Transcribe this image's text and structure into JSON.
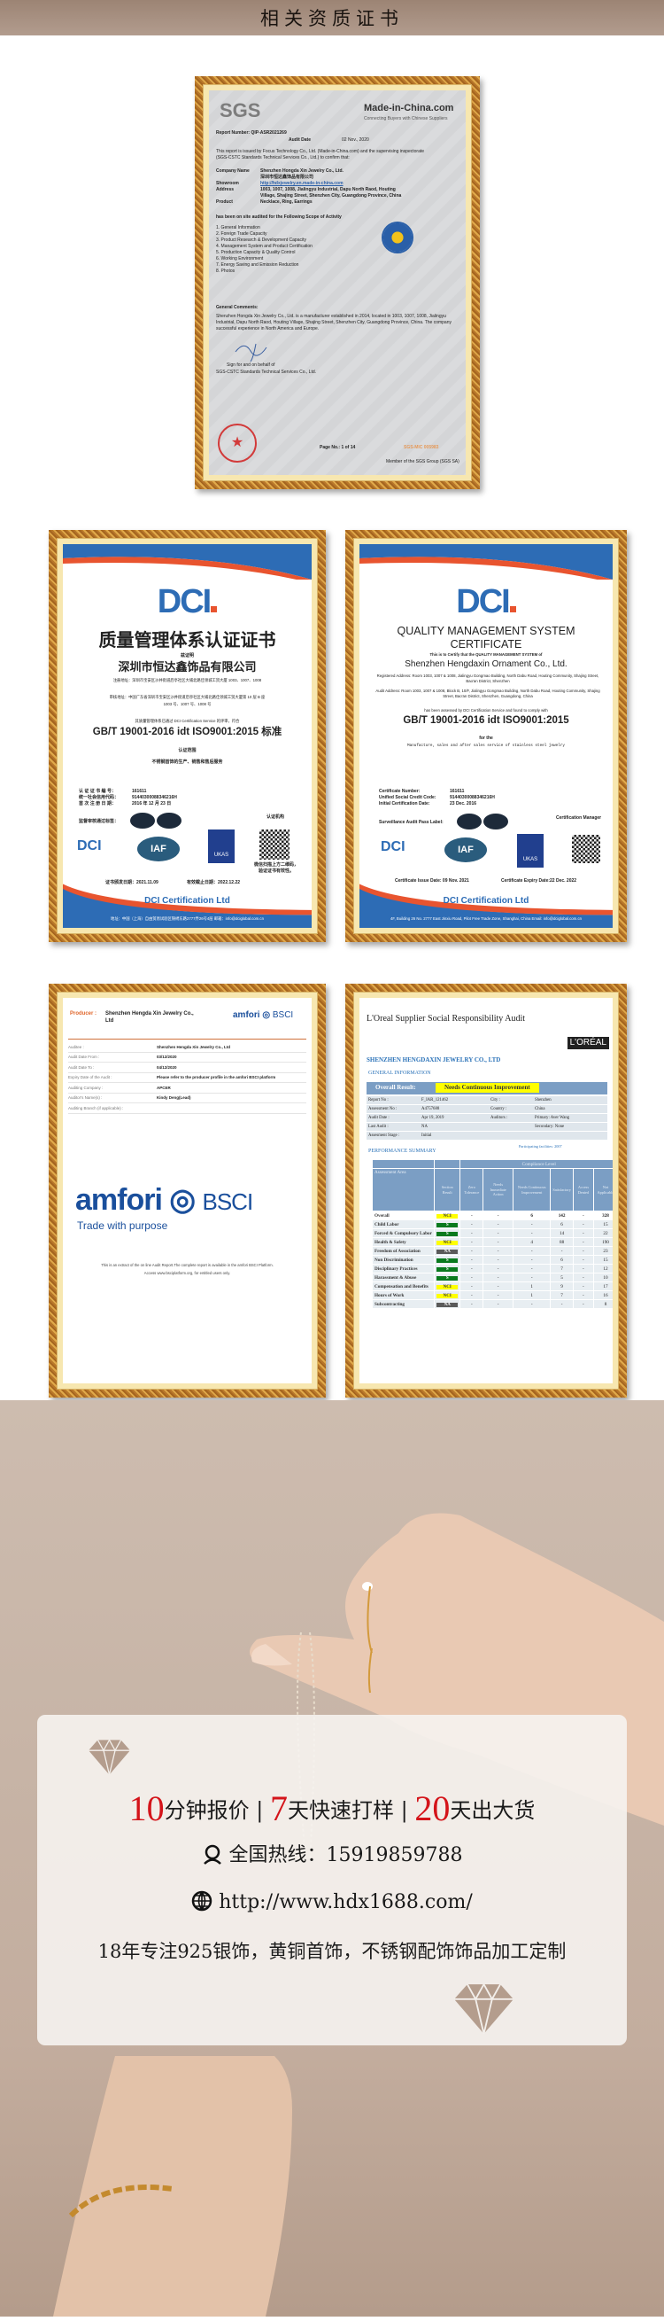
{
  "header": {
    "title": "相关资质证书"
  },
  "sgs": {
    "brand": "SGS",
    "mic_logo": "Made-in-China.com",
    "mic_tagline": "Connecting Buyers with Chinese Suppliers",
    "report_number": "Report Number: QIP-ASR2021269",
    "audit_date_label": "Audit Date",
    "audit_date": "02 Nov., 2020",
    "intro": "This report is issued by Focus Technology Co., Ltd. (Made-in-China.com) and the supervising inspectorate (SGS-CSTC Standards Technical Services Co., Ltd.) to confirm that:",
    "fields": [
      {
        "label": "Company Name",
        "value": "Shenzhen Hongda Xin Jewelry Co., Ltd."
      },
      {
        "label": "",
        "value": "深圳市恒达鑫饰品有限公司"
      },
      {
        "label": "Showroom",
        "value": "http://hdxjewelry.en.made-in-china.com"
      },
      {
        "label": "Address",
        "value": "1003, 1007, 1008, Jialingyu Industrial, Dapu North Raod, Houting"
      },
      {
        "label": "",
        "value": "Village, Shajing Street, Shenzhen City, Guangdong Province, China"
      },
      {
        "label": "Product",
        "value": "Necklace, Ring, Earrings"
      }
    ],
    "scope_title": "has been on site audited for the Following Scope of Activity",
    "scope": [
      "1. General Information",
      "2. Foreign Trade Capacity",
      "3. Product Research & Development Capacity",
      "4. Management System and Product Certification",
      "5. Production Capacity & Quality Control",
      "6. Working Environment",
      "7. Energy Saving and Emission Reduction",
      "8. Photos"
    ],
    "comments_title": "General Comments:",
    "comments": "Shenzhen Hongda Xin Jewelry Co., Ltd. is a manufacturer established in 2014, located in 1003, 1007, 1008, Jialingyu Industrial, Dapu North Raod, Houting Village, Shajing Street, Shenzhen City, Guangdong Province, China. The company successful experience in North America and Europe.",
    "sign1": "Sign for and on behalf of",
    "sign2": "SGS-CSTC Standards Technical Services Co., Ltd.",
    "page": "Page No.: 1 of 14",
    "serial": "SGS-MIC  005983",
    "member": "Member of the SGS Group (SGS SA)"
  },
  "dci_cn": {
    "title": "质量管理体系认证证书",
    "sub": "兹证明",
    "company": "深圳市恒达鑫饰品有限公司",
    "reg_addr": "注册地址：深圳市宝安区沙井街道后亭社区大埔北路佳领城工贸大厦 1003、1007、1008",
    "audit_addr1": "审核地址：中国广东省深圳市宝安区沙井街道后亭社区大埔北路佳领城工贸大厦第 10 层 B 座",
    "audit_addr2": "1003 号、1007 号、1008 号",
    "assessed": "其质量管理体系已通过 DCI Certification Service 的评审，符合",
    "standard": "GB/T 19001-2016 idt ISO9001:2015 标准",
    "scope_label": "认证范围",
    "scope": "不锈钢首饰的生产、销售和售后服务",
    "rows": [
      {
        "label": "认 证 证 书 编 号：",
        "value": "161611"
      },
      {
        "label": "统一社会信用代码：",
        "value": "91440300088346216H"
      },
      {
        "label": "首 次 注 册 日 期：",
        "value": "2016 年 12 月 23 日"
      }
    ],
    "label_pass": "监督审核通过标签：",
    "seal_label": "认证机构",
    "qr_note": "微信扫描上方二维码，验证证书有效性。",
    "issue": "证书颁发日期：2021.11.09",
    "expiry": "有效截止日期：2022.12.22",
    "footer": "DCI Certification Ltd",
    "footer_addr": "地址：中国（上海）自由贸易试验区锦绣东路2777弄26号4层    邮箱：info@dciglobal.com.cn"
  },
  "dci_en": {
    "title1": "QUALITY MANAGEMENT SYSTEM",
    "title2": "CERTIFICATE",
    "certify": "This is to Certify that the QUALITY MANAGEMENT SYSTEM of",
    "company": "Shenzhen Hengdaxin Ornament Co., Ltd.",
    "reg_addr": "Registered Address: Room 1003, 1007 & 1008, Jialingyu Gongmao Building, North Dabu Road, Houting Community, Shajing Street, Bao'an District, Shenzhen",
    "audit_addr": "Audit Address: Room 1003, 1007 & 1008, Block B, 10/F, Jialingyu Gongmao Building, North Dabu Road, Houting Community, Shajing Street, Bao'an District, Shenzhen, Guangdong, China",
    "assessed": "has been assessed by DCI Certification Service and found to comply with",
    "standard": "GB/T 19001-2016 idt ISO9001:2015",
    "for": "for the",
    "scope": "Manufacture, sales and after sales service of stainless steel jewelry",
    "rows": [
      {
        "label": "Certificate Number:",
        "value": "161611"
      },
      {
        "label": "Unified Social Credit Code:",
        "value": "91440300088346216H"
      },
      {
        "label": "Initial Certification Date:",
        "value": "23 Dec. 2016"
      }
    ],
    "label_pass": "Surveillance Audit Pass Label:",
    "manager": "Certification Manager",
    "issue": "Certificate Issue Date: 09 Nov. 2021",
    "expiry": "Certificate Expiry Date:22 Dec. 2022",
    "footer": "DCI Certification Ltd",
    "footer_addr": "4F, Building 26 No. 2777 East Jinxiu Road, Pilot Free Trade Zone, Shanghai, China   Email: info@dciglobal.com.cn"
  },
  "amfori": {
    "producer_label": "Producer :",
    "producer": "Shenzhen Hengda Xin Jewelry Co., Ltd",
    "logo": "amfori",
    "logo_bsci": "BSCI",
    "tagline": "Trade with purpose",
    "rows": [
      {
        "label": "Auditee :",
        "value": "Shenzhen Hengda Xin Jewelry Co., Ltd"
      },
      {
        "label": "Audit Date From :",
        "value": "03/12/2020"
      },
      {
        "label": "Audit Date To :",
        "value": "04/12/2020"
      },
      {
        "label": "Expiry Date of the Audit :",
        "value": "Please refer to the producer profile in the amfori BSCI platform"
      },
      {
        "label": "Auditing Company :",
        "value": "APCER"
      },
      {
        "label": "Auditor's Name(s) :",
        "value": "Kindy Deng(Lead)"
      },
      {
        "label": "Auditing Branch (if applicable) :",
        "value": ""
      }
    ],
    "extract1": "This is an extract of the on line Audit Report.The complete report is available in the amfori BSCI Platform.",
    "extract2": "Access www.bsciplatform.org, for entitled users only."
  },
  "loreal": {
    "title": "L'Oreal Supplier Social Responsibility Audit",
    "logo": "L'ORÉAL",
    "company": "SHENZHEN HENGDAXIN JEWELRY CO., LTD",
    "general": "GENERAL INFORMATION",
    "overall_label": "Overall Result:",
    "overall_value": "Needs Continuous Improvement",
    "info": [
      {
        "k": "Report No :",
        "v": "F_IAR_121462",
        "k2": "City :",
        "v2": "Shenzhen"
      },
      {
        "k": "Assessment No :",
        "v": "A4757688",
        "k2": "Country :",
        "v2": "China"
      },
      {
        "k": "Audit Date :",
        "v": "Apr 19, 2019",
        "k2": "Auditors :",
        "v2": "Primary: Aver Wang"
      },
      {
        "k": "Last Audit :",
        "v": "NA",
        "k2": "",
        "v2": "Secondary: None"
      },
      {
        "k": "Assesment Stage :",
        "v": "Initial",
        "k2": "",
        "v2": ""
      }
    ],
    "performance": "PERFORMANCE SUMMARY",
    "participating": "Participating facilities: 2007",
    "compliance": "Compliance Level",
    "columns": [
      "Assessment Area",
      "Section Result",
      "Zero Tolerance",
      "Needs Immediate Action",
      "Needs Continuous Improvement",
      "Satisfactory",
      "Access Denied",
      "Not Applicable"
    ],
    "rows": [
      [
        "Overall",
        "NCI",
        "-",
        "-",
        "6",
        "142",
        "-",
        "328"
      ],
      [
        "Child Labor",
        "S",
        "-",
        "-",
        "-",
        "6",
        "-",
        "15"
      ],
      [
        "Forced & Compulsory Labor",
        "S",
        "-",
        "-",
        "-",
        "14",
        "-",
        "22"
      ],
      [
        "Health & Safety",
        "NCI",
        "-",
        "-",
        "4",
        "88",
        "-",
        "190"
      ],
      [
        "Freedom of Association",
        "NA",
        "-",
        "-",
        "-",
        "-",
        "-",
        "23"
      ],
      [
        "Non Discrimination",
        "S",
        "-",
        "-",
        "-",
        "6",
        "-",
        "15"
      ],
      [
        "Disciplinary Practices",
        "S",
        "-",
        "-",
        "-",
        "7",
        "-",
        "12"
      ],
      [
        "Harassment & Abuse",
        "S",
        "-",
        "-",
        "-",
        "5",
        "-",
        "10"
      ],
      [
        "Compensation and Benefits",
        "NCI",
        "-",
        "-",
        "1",
        "9",
        "-",
        "17"
      ],
      [
        "Hours of Work",
        "NCI",
        "-",
        "-",
        "1",
        "7",
        "-",
        "16"
      ],
      [
        "Subcontracting",
        "NA",
        "-",
        "-",
        "-",
        "-",
        "-",
        "8"
      ]
    ],
    "result_colors": {
      "NCI": "#ffff00",
      "S": "#0a7a1e",
      "NA": "#5a5a5a"
    }
  },
  "promo": {
    "n1": "10",
    "t1": "分钟报价",
    "sep": "|",
    "n2": "7",
    "t2": "天快速打样",
    "n3": "20",
    "t3": "天出大货",
    "hotline": "全国热线：15919859788",
    "url": "http://www.hdx1688.com/",
    "tagline": "18年专注925银饰，黄铜首饰，不锈钢配饰饰品加工定制",
    "accent": "#d4141a",
    "icons": [
      "diamond-icon",
      "headset-icon",
      "globe-icon"
    ]
  }
}
